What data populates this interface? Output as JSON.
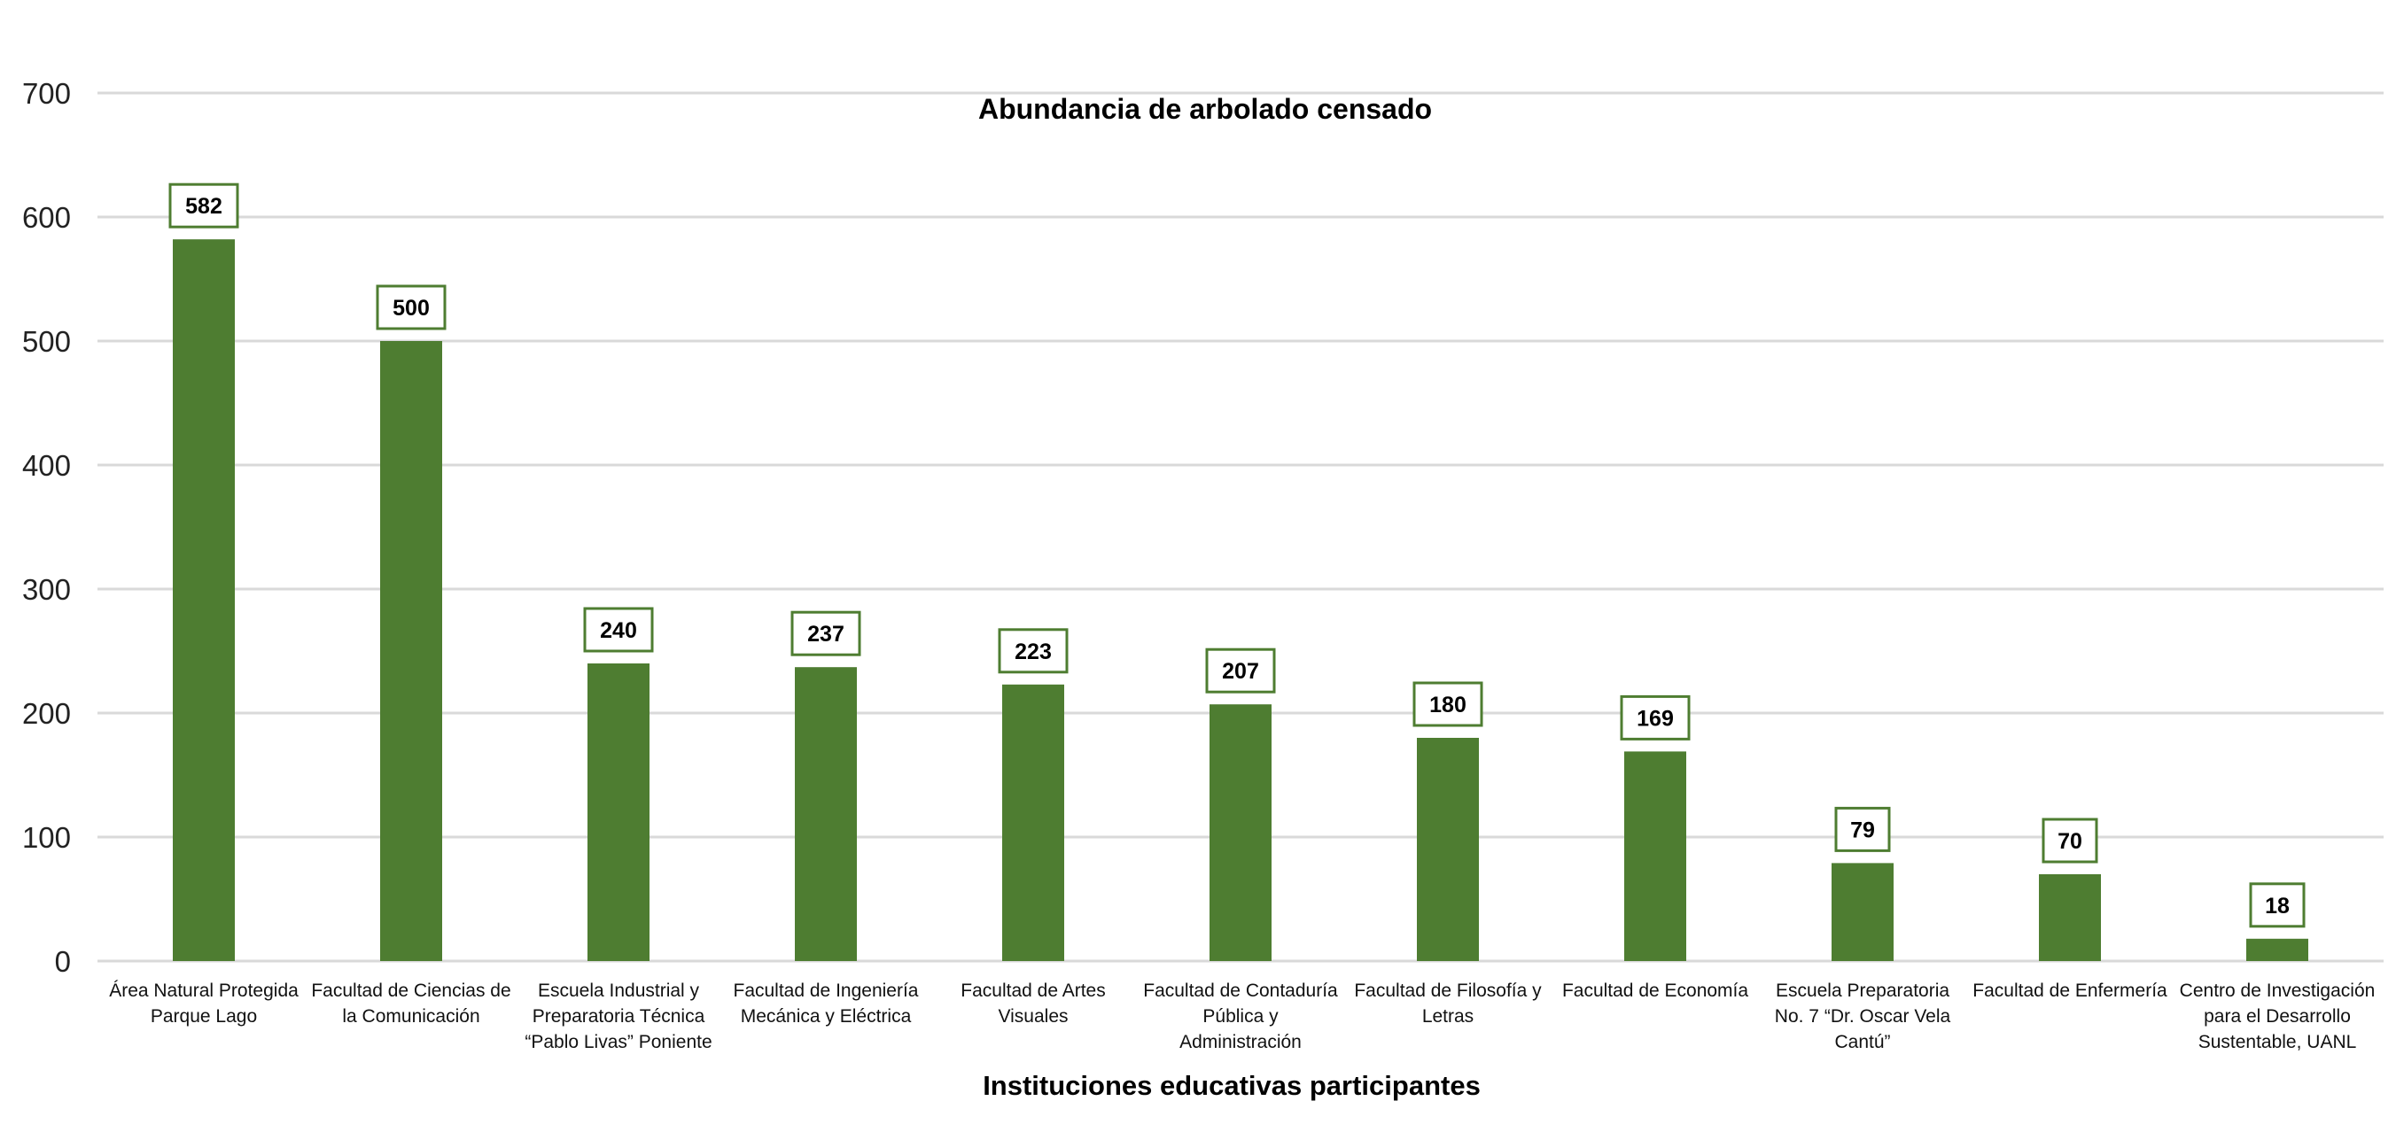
{
  "chart_data": {
    "type": "bar",
    "title": "Abundancia de arbolado censado",
    "xlabel": "Instituciones educativas participantes",
    "ylabel": "",
    "ylim": [
      0,
      700
    ],
    "yticks": [
      0,
      100,
      200,
      300,
      400,
      500,
      600,
      700
    ],
    "grid": true,
    "legend": "none",
    "bar_color": "#4e7d31",
    "categories": [
      [
        "Área Natural Protegida",
        "Parque Lago"
      ],
      [
        "Facultad de Ciencias de",
        "la Comunicación"
      ],
      [
        "Escuela Industrial y",
        "Preparatoria Técnica",
        "“Pablo Livas” Poniente"
      ],
      [
        "Facultad de Ingeniería",
        "Mecánica y Eléctrica"
      ],
      [
        "Facultad de Artes",
        "Visuales"
      ],
      [
        "Facultad de Contaduría",
        "Pública y",
        "Administración"
      ],
      [
        "Facultad de Filosofía y",
        "Letras"
      ],
      [
        "Facultad de Economía"
      ],
      [
        "Escuela Preparatoria",
        "No. 7 “Dr. Oscar Vela",
        "Cantú”"
      ],
      [
        "Facultad de Enfermería"
      ],
      [
        "Centro de Investigación",
        "para el Desarrollo",
        "Sustentable, UANL"
      ]
    ],
    "values": [
      582,
      500,
      240,
      237,
      223,
      207,
      180,
      169,
      79,
      70,
      18
    ]
  }
}
